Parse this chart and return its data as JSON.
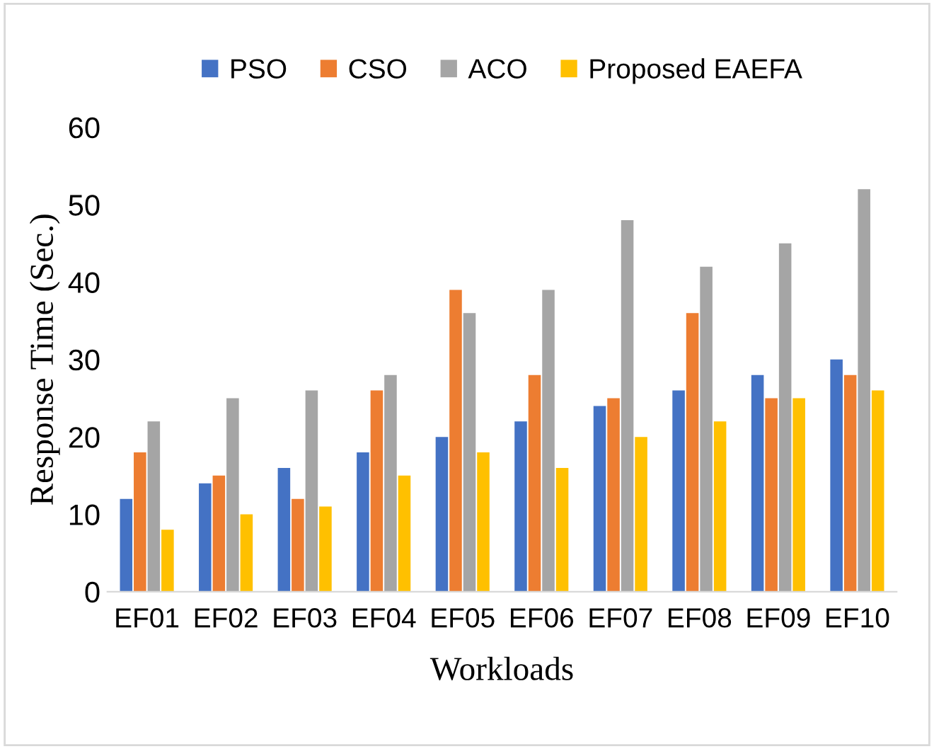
{
  "chart_data": {
    "type": "bar",
    "xlabel": "Workloads",
    "ylabel": "Response Time (Sec.)",
    "categories": [
      "EF01",
      "EF02",
      "EF03",
      "EF04",
      "EF05",
      "EF06",
      "EF07",
      "EF08",
      "EF09",
      "EF10"
    ],
    "series": [
      {
        "name": "PSO",
        "color": "#4472c4",
        "values": [
          12,
          14,
          16,
          18,
          20,
          22,
          24,
          26,
          28,
          30
        ]
      },
      {
        "name": "CSO",
        "color": "#ed7d31",
        "values": [
          18,
          15,
          12,
          26,
          39,
          28,
          25,
          36,
          25,
          28
        ]
      },
      {
        "name": "ACO",
        "color": "#a5a5a5",
        "values": [
          22,
          25,
          26,
          28,
          36,
          39,
          48,
          42,
          45,
          52
        ]
      },
      {
        "name": "Proposed EAEFA",
        "color": "#ffc000",
        "values": [
          8,
          10,
          11,
          15,
          18,
          16,
          20,
          22,
          25,
          26
        ]
      }
    ],
    "ylim": [
      0,
      60
    ],
    "yticks": [
      0,
      10,
      20,
      30,
      40,
      50,
      60
    ],
    "grid": false,
    "legend": "top"
  }
}
